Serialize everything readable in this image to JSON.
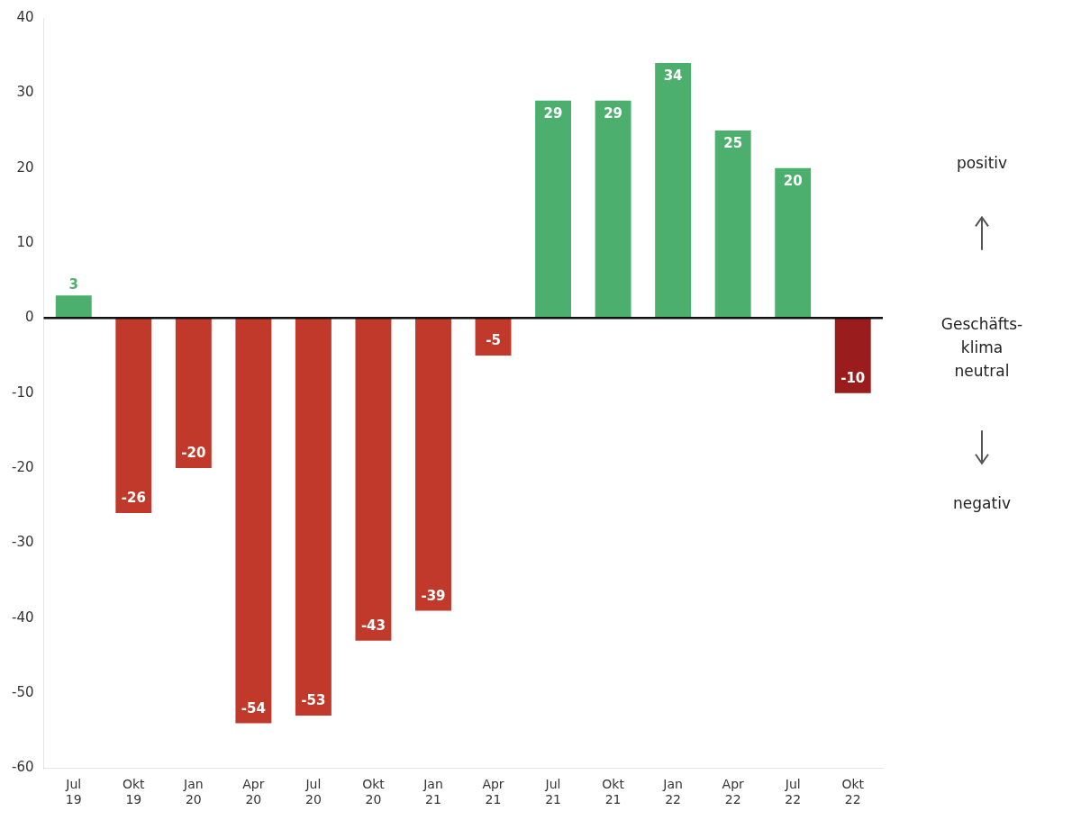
{
  "chart_data": {
    "type": "bar",
    "categories": [
      "Jul\n19",
      "Okt\n19",
      "Jan\n20",
      "Apr\n20",
      "Jul\n20",
      "Okt\n20",
      "Jan\n21",
      "Apr\n21",
      "Jul\n21",
      "Okt\n21",
      "Jan\n22",
      "Apr\n22",
      "Jul\n22",
      "Okt\n22"
    ],
    "values": [
      3,
      -26,
      -20,
      -54,
      -53,
      -43,
      -39,
      -5,
      29,
      29,
      34,
      25,
      20,
      -10
    ],
    "colors": [
      "#4caf6e",
      "#c0392b",
      "#c0392b",
      "#c0392b",
      "#c0392b",
      "#c0392b",
      "#c0392b",
      "#c0392b",
      "#4caf6e",
      "#4caf6e",
      "#4caf6e",
      "#4caf6e",
      "#4caf6e",
      "#9b1c1c"
    ],
    "ylim": [
      -60,
      40
    ],
    "yticks": [
      -60,
      -50,
      -40,
      -30,
      -20,
      -10,
      0,
      10,
      20,
      30,
      40
    ],
    "grid": false,
    "data_labels": true,
    "annotations": [
      "positiv",
      "Geschäfts-\nklima\nneutral",
      "negativ"
    ]
  }
}
